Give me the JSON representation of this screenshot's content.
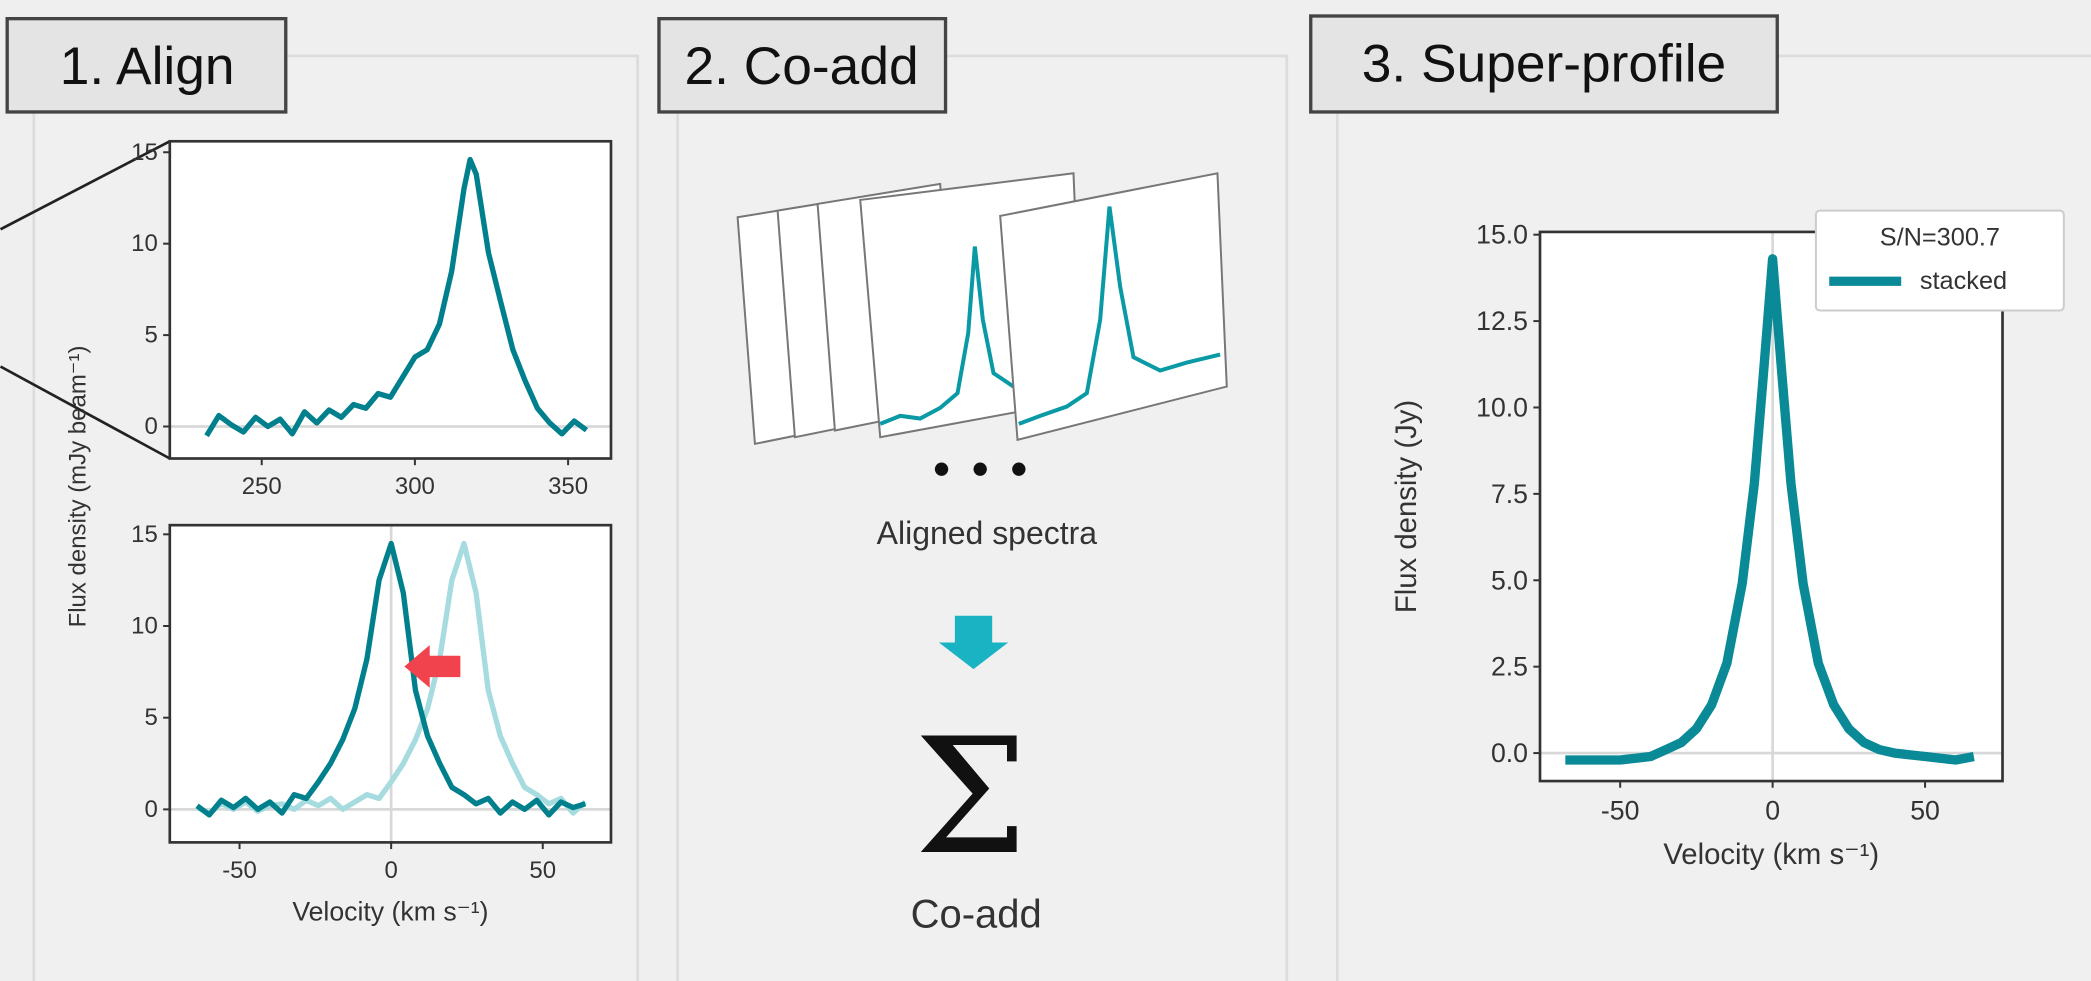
{
  "panels": [
    {
      "title": "1. Align",
      "ylabel": "Flux density  (mJy beam⁻¹)"
    },
    {
      "title": "2. Co-add",
      "caption": "Aligned spectra",
      "symbol": "Σ",
      "label": "Co-add"
    },
    {
      "title": "3. Super-profile"
    }
  ],
  "chart_data": [
    {
      "type": "line",
      "x": [
        232,
        236,
        240,
        244,
        248,
        252,
        256,
        260,
        264,
        268,
        272,
        276,
        280,
        284,
        288,
        292,
        296,
        300,
        304,
        308,
        312,
        316,
        318,
        320,
        324,
        328,
        332,
        336,
        340,
        344,
        348,
        352,
        356
      ],
      "series": [
        {
          "color": "#00808c",
          "values": [
            -0.5,
            0.6,
            0.1,
            -0.3,
            0.5,
            0.0,
            0.4,
            -0.4,
            0.8,
            0.2,
            0.9,
            0.5,
            1.2,
            1.0,
            1.8,
            1.6,
            2.7,
            3.8,
            4.2,
            5.6,
            8.5,
            13.0,
            14.6,
            13.8,
            9.5,
            6.8,
            4.2,
            2.5,
            1.0,
            0.2,
            -0.4,
            0.3,
            -0.2
          ]
        }
      ],
      "xlim": [
        220,
        364
      ],
      "ylim": [
        -1.75,
        15.6
      ],
      "xticks": [
        250,
        300,
        350
      ],
      "yticks": [
        0,
        5,
        10,
        15
      ],
      "zero_lines": true
    },
    {
      "type": "line",
      "x": [
        -64,
        -60,
        -56,
        -52,
        -48,
        -44,
        -40,
        -36,
        -32,
        -28,
        -24,
        -20,
        -16,
        -12,
        -8,
        -4,
        0,
        4,
        8,
        12,
        16,
        20,
        24,
        28,
        32,
        36,
        40,
        44,
        48,
        52,
        56,
        60,
        64
      ],
      "series": [
        {
          "color": "#a6dcdf",
          "values": [
            0.1,
            -0.2,
            0.3,
            0.0,
            0.4,
            -0.1,
            0.2,
            0.3,
            0.0,
            0.5,
            0.2,
            0.6,
            0.0,
            0.4,
            0.8,
            0.6,
            1.5,
            2.5,
            3.8,
            5.5,
            8.2,
            12.5,
            14.5,
            11.8,
            6.5,
            4.0,
            2.5,
            1.2,
            0.8,
            0.3,
            0.6,
            -0.2,
            0.4
          ]
        },
        {
          "color": "#00808c",
          "values": [
            0.2,
            -0.3,
            0.5,
            0.1,
            0.6,
            0.0,
            0.4,
            -0.2,
            0.8,
            0.6,
            1.5,
            2.5,
            3.8,
            5.5,
            8.2,
            12.5,
            14.5,
            11.8,
            6.5,
            4.0,
            2.5,
            1.2,
            0.8,
            0.3,
            0.6,
            -0.2,
            0.4,
            0.0,
            0.5,
            -0.3,
            0.4,
            0.1,
            0.3
          ]
        }
      ],
      "xlim": [
        -73,
        72.5
      ],
      "ylim": [
        -1.8,
        15.5
      ],
      "xticks": [
        -50,
        0,
        50
      ],
      "yticks": [
        0,
        5,
        10,
        15
      ],
      "xlabel": "Velocity (km s⁻¹)",
      "zero_lines": true
    },
    {
      "type": "line",
      "x": [
        -68,
        -60,
        -50,
        -40,
        -35,
        -30,
        -25,
        -20,
        -15,
        -10,
        -6,
        -3,
        0,
        3,
        6,
        10,
        15,
        20,
        25,
        30,
        35,
        40,
        50,
        60,
        66
      ],
      "series": [
        {
          "name": "stacked",
          "color": "#0a8a96",
          "values": [
            -0.2,
            -0.2,
            -0.2,
            -0.1,
            0.1,
            0.3,
            0.7,
            1.4,
            2.6,
            4.9,
            7.8,
            11.0,
            14.3,
            11.0,
            7.8,
            4.9,
            2.6,
            1.4,
            0.7,
            0.3,
            0.1,
            0.0,
            -0.1,
            -0.2,
            -0.1
          ]
        }
      ],
      "xlim": [
        -76.3,
        75.4
      ],
      "ylim": [
        -0.81,
        15.08
      ],
      "xticks": [
        -50,
        0,
        50
      ],
      "yticks": [
        {
          "value": 0,
          "label": "0.0"
        },
        2.5,
        {
          "value": 5,
          "label": "5.0"
        },
        7.5,
        {
          "value": 10,
          "label": "10.0"
        },
        12.5,
        {
          "value": 15,
          "label": "15.0"
        }
      ],
      "xlabel": "Velocity (km s⁻¹)",
      "ylabel": "Flux density (Jy)",
      "legend": "upper right",
      "legend_title": "S/N=300.7",
      "zero_lines": true
    }
  ]
}
